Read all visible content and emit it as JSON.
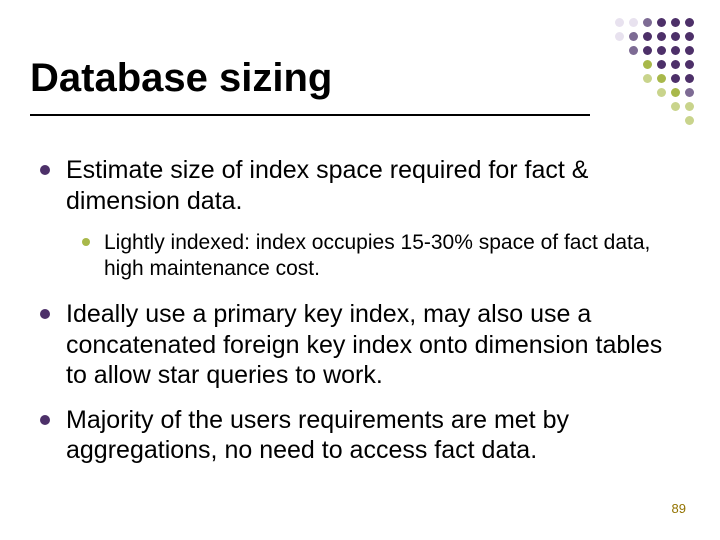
{
  "title": "Database sizing",
  "bullets": {
    "b1": "Estimate size of index space required for fact & dimension data.",
    "b1_1": "Lightly indexed: index occupies 15-30% space of fact data, high maintenance cost.",
    "b2": "Ideally use a primary key index, may also use a concatenated foreign key index onto dimension tables to allow star queries to work.",
    "b3": "Majority of the users requirements are met by aggregations, no need to access fact data."
  },
  "page_number": "89",
  "colors": {
    "l1_bullet": "#4d3069",
    "l2_bullet": "#a8b84a",
    "title_text": "#000000",
    "body_text": "#000000",
    "rule": "#000000",
    "pagenum": "#937300",
    "dot_dark": "#4d3069",
    "dot_mid": "#7d6b94",
    "dot_olive": "#a8b84a",
    "dot_lightolive": "#c9d48c",
    "dot_faint": "#e8e2ef"
  },
  "fonts": {
    "title_size": 40,
    "l1_size": 25,
    "l2_size": 21,
    "pagenum_size": 13
  },
  "dot_grid": {
    "rows": [
      [
        "dot_faint",
        "dot_faint",
        "dot_mid",
        "dot_dark",
        "dot_dark",
        "dot_dark"
      ],
      [
        "dot_faint",
        "dot_mid",
        "dot_dark",
        "dot_dark",
        "dot_dark",
        "dot_dark"
      ],
      [
        "dot_mid",
        "dot_dark",
        "dot_dark",
        "dot_dark",
        "dot_dark"
      ],
      [
        "dot_olive",
        "dot_dark",
        "dot_dark",
        "dot_dark"
      ],
      [
        "dot_lightolive",
        "dot_olive",
        "dot_dark",
        "dot_dark"
      ],
      [
        "dot_lightolive",
        "dot_olive",
        "dot_mid"
      ],
      [
        "dot_lightolive",
        "dot_lightolive"
      ],
      [
        "dot_lightolive"
      ]
    ]
  }
}
